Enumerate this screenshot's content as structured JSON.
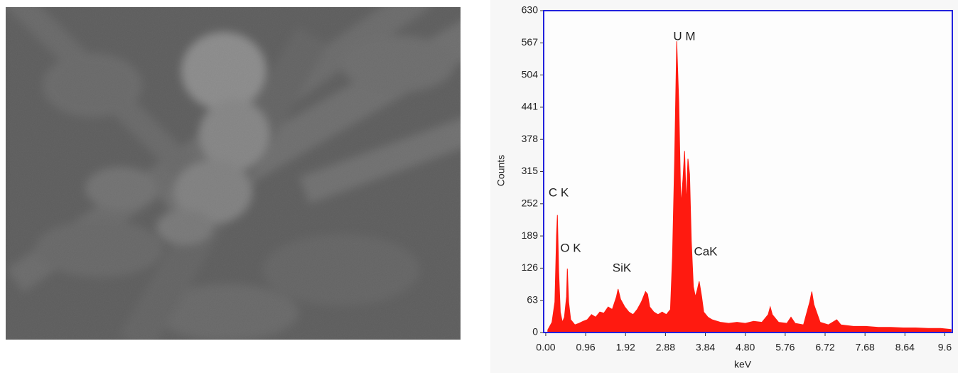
{
  "chart_data": {
    "type": "area",
    "x_label": "keV",
    "y_label": "Counts",
    "color": "#ff1a10",
    "xlim": [
      -0.05,
      9.78
    ],
    "ylim": [
      0,
      630
    ],
    "xticks": [
      {
        "value": 0,
        "label": "0.00"
      },
      0.96,
      1.92,
      2.88,
      3.84,
      {
        "value": 4.8,
        "label": "4.80"
      },
      5.76,
      6.72,
      7.68,
      8.64,
      9.6
    ],
    "yticks": [
      0,
      63,
      126,
      189,
      252,
      315,
      378,
      441,
      504,
      567,
      630
    ],
    "annotations": [
      "C K",
      "O K",
      "SiK",
      "U M",
      "CaK"
    ],
    "x": [
      0.05,
      0.15,
      0.22,
      0.26,
      0.28,
      0.31,
      0.35,
      0.4,
      0.45,
      0.5,
      0.52,
      0.55,
      0.6,
      0.7,
      0.8,
      0.9,
      1.0,
      1.1,
      1.2,
      1.3,
      1.4,
      1.5,
      1.6,
      1.7,
      1.74,
      1.8,
      1.9,
      2.0,
      2.1,
      2.2,
      2.3,
      2.4,
      2.45,
      2.5,
      2.6,
      2.7,
      2.8,
      2.9,
      3.0,
      3.05,
      3.1,
      3.15,
      3.2,
      3.25,
      3.3,
      3.34,
      3.38,
      3.42,
      3.46,
      3.5,
      3.55,
      3.6,
      3.65,
      3.69,
      3.75,
      3.8,
      3.9,
      4.0,
      4.2,
      4.4,
      4.6,
      4.8,
      5.0,
      5.2,
      5.35,
      5.4,
      5.45,
      5.6,
      5.8,
      5.9,
      6.0,
      6.2,
      6.35,
      6.4,
      6.45,
      6.6,
      6.8,
      7.0,
      7.1,
      7.4,
      7.7,
      8.0,
      8.3,
      8.6,
      8.9,
      9.2,
      9.5,
      9.75
    ],
    "values": [
      5,
      20,
      60,
      190,
      230,
      120,
      40,
      20,
      30,
      70,
      125,
      60,
      25,
      15,
      18,
      22,
      25,
      35,
      30,
      40,
      38,
      50,
      45,
      70,
      85,
      65,
      50,
      40,
      35,
      45,
      60,
      80,
      75,
      50,
      40,
      35,
      40,
      35,
      45,
      150,
      340,
      570,
      450,
      250,
      300,
      355,
      250,
      340,
      310,
      180,
      90,
      70,
      85,
      100,
      70,
      40,
      30,
      25,
      20,
      18,
      20,
      18,
      22,
      20,
      35,
      50,
      35,
      20,
      18,
      30,
      18,
      15,
      60,
      80,
      55,
      20,
      15,
      25,
      15,
      12,
      12,
      10,
      10,
      9,
      9,
      8,
      8,
      6
    ]
  }
}
